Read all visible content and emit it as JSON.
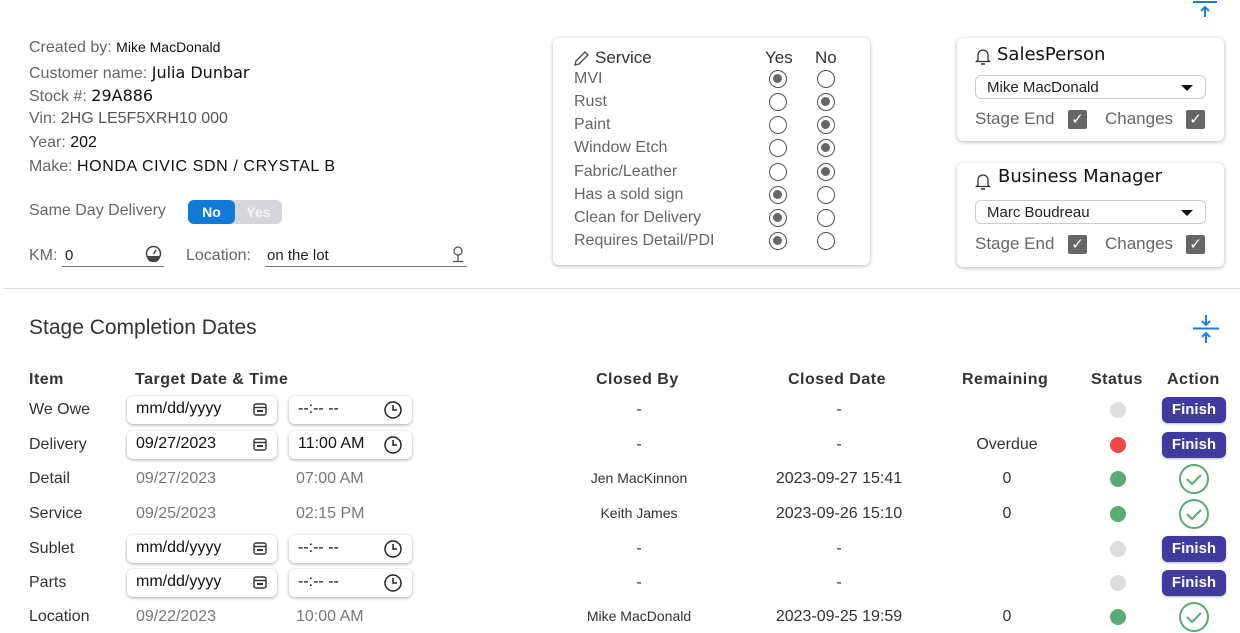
{
  "info": {
    "created_by_label": "Created by:",
    "created_by": "Mike MacDonald",
    "customer_label": "Customer name:",
    "customer": "Julia Dunbar",
    "stock_label": "Stock #:",
    "stock": "29A886",
    "vin_label": "Vin:",
    "vin": "2HG LE5F5XRH10 000",
    "year_label": "Year:",
    "year": "202",
    "make_label": "Make:",
    "make": "HONDA CIVIC SDN / CRYSTAL B",
    "same_day_label": "Same Day Delivery",
    "toggle_no": "No",
    "toggle_yes": "Yes",
    "same_day_value": "No",
    "km_label": "KM:",
    "km": "0",
    "location_label": "Location:",
    "location": "on the lot"
  },
  "service": {
    "title": "Service",
    "yes": "Yes",
    "no": "No",
    "items": [
      {
        "label": "MVI",
        "value": "yes"
      },
      {
        "label": "Rust",
        "value": "no"
      },
      {
        "label": "Paint",
        "value": "no"
      },
      {
        "label": "Window Etch",
        "value": "no"
      },
      {
        "label": "Fabric/Leather",
        "value": "no"
      },
      {
        "label": "Has a sold sign",
        "value": "yes"
      },
      {
        "label": "Clean for Delivery",
        "value": "yes"
      },
      {
        "label": "Requires Detail/PDI",
        "value": "yes"
      }
    ]
  },
  "salesperson": {
    "title": "SalesPerson",
    "selected": "Mike MacDonald",
    "stage_end": "Stage End",
    "changes": "Changes",
    "stage_end_checked": true,
    "changes_checked": true
  },
  "business_manager": {
    "title": "Business Manager",
    "selected": "Marc Boudreau",
    "stage_end": "Stage End",
    "changes": "Changes",
    "stage_end_checked": true,
    "changes_checked": true
  },
  "stages": {
    "title": "Stage Completion Dates",
    "headers": [
      "Item",
      "Target Date & Time",
      "Closed By",
      "Closed Date",
      "Remaining",
      "Status",
      "Action"
    ],
    "date_placeholder": "mm/dd/yyyy",
    "time_placeholder": "--:-- --",
    "colors": {
      "grey": "#dcdde1",
      "red": "#f04848",
      "green": "#5aab72",
      "finish": "#3f3a9e",
      "accent": "#1a7fd4"
    },
    "finish_label": "Finish",
    "rows": [
      {
        "item": "We Owe",
        "editable": true,
        "date": "",
        "time": "",
        "closed_by": "-",
        "closed_date": "-",
        "remaining": "",
        "status": "grey",
        "action": "finish"
      },
      {
        "item": "Delivery",
        "editable": true,
        "date": "09/27/2023",
        "time": "11:00 AM",
        "closed_by": "-",
        "closed_date": "-",
        "remaining": "Overdue",
        "status": "red",
        "action": "finish"
      },
      {
        "item": "Detail",
        "editable": false,
        "date": "09/27/2023",
        "time": "07:00 AM",
        "closed_by": "Jen MacKinnon",
        "closed_date": "2023-09-27 15:41",
        "remaining": "0",
        "status": "green",
        "action": "done"
      },
      {
        "item": "Service",
        "editable": false,
        "date": "09/25/2023",
        "time": "02:15 PM",
        "closed_by": "Keith James",
        "closed_date": "2023-09-26 15:10",
        "remaining": "0",
        "status": "green",
        "action": "done"
      },
      {
        "item": "Sublet",
        "editable": true,
        "date": "",
        "time": "",
        "closed_by": "-",
        "closed_date": "-",
        "remaining": "",
        "status": "grey",
        "action": "finish"
      },
      {
        "item": "Parts",
        "editable": true,
        "date": "",
        "time": "",
        "closed_by": "-",
        "closed_date": "-",
        "remaining": "",
        "status": "grey",
        "action": "finish"
      },
      {
        "item": "Location",
        "editable": false,
        "date": "09/22/2023",
        "time": "10:00 AM",
        "closed_by": "Mike MacDonald",
        "closed_date": "2023-09-25 19:59",
        "remaining": "0",
        "status": "green",
        "action": "done"
      }
    ]
  }
}
